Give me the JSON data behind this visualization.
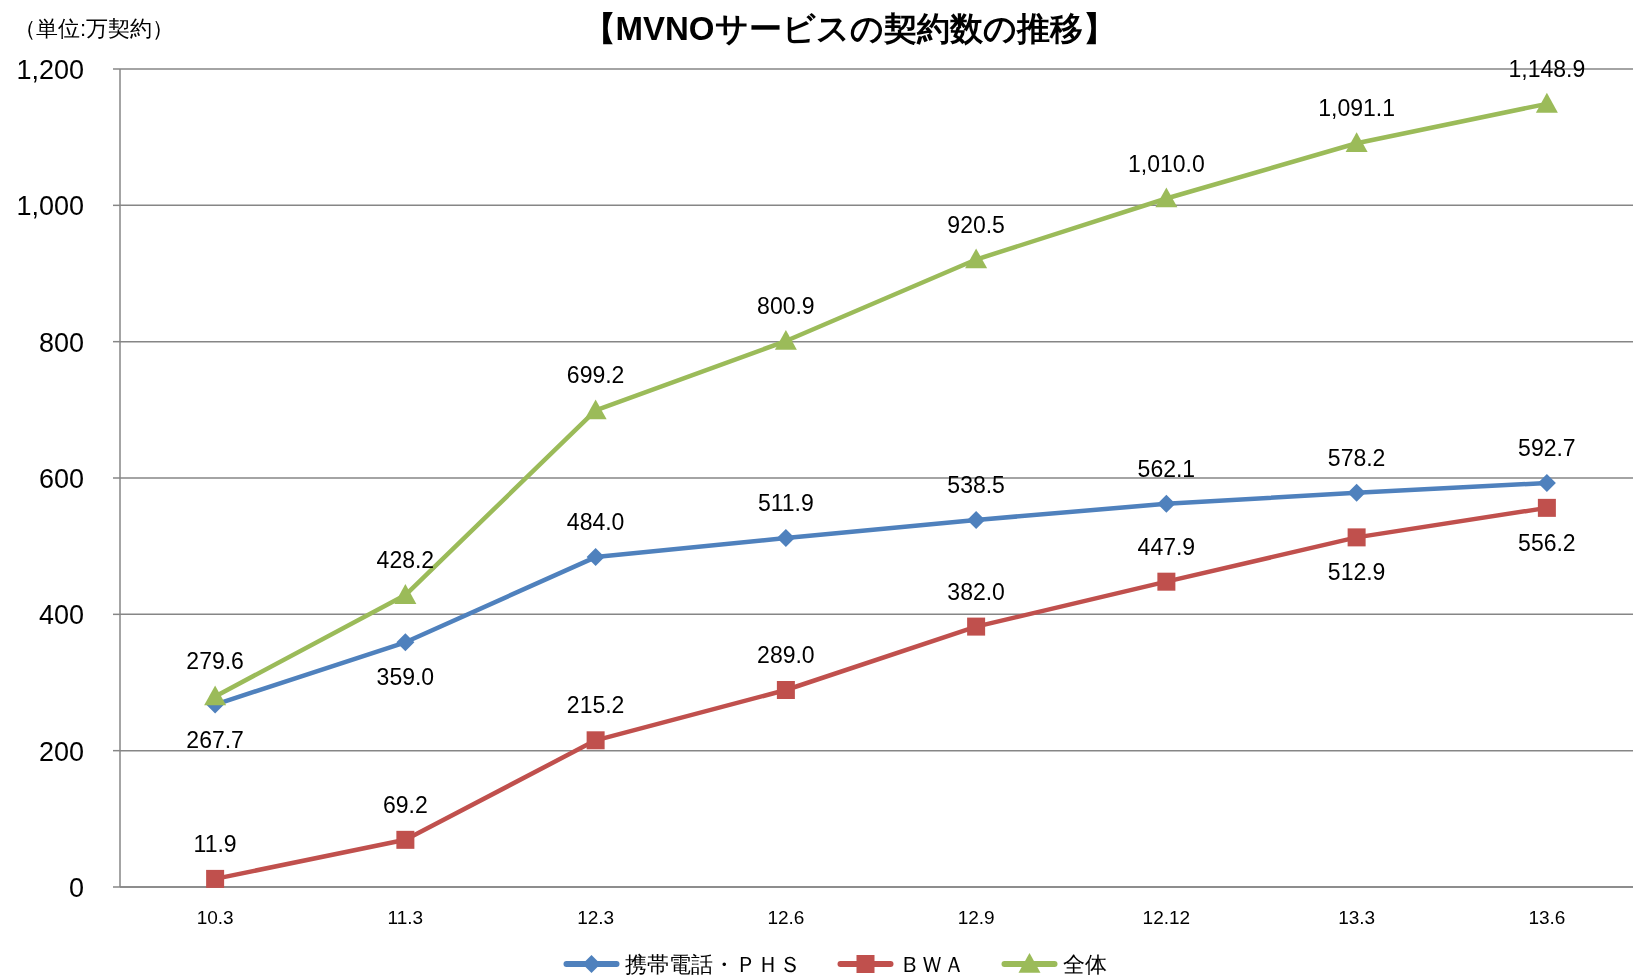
{
  "chart_data": {
    "type": "line",
    "title": "【MVNOサービスの契約数の推移】",
    "ylabel": "（単位:万契約）",
    "categories": [
      "10.3",
      "11.3",
      "12.3",
      "12.6",
      "12.9",
      "12.12",
      "13.3",
      "13.6"
    ],
    "series": [
      {
        "name": "携帯電話・ＰＨＳ",
        "color": "#4f81bd",
        "marker": "diamond",
        "values": [
          267.7,
          359.0,
          484.0,
          511.9,
          538.5,
          562.1,
          578.2,
          592.7
        ],
        "value_labels": [
          "267.7",
          "359.0",
          "484.0",
          "511.9",
          "538.5",
          "562.1",
          "578.2",
          "592.7"
        ]
      },
      {
        "name": "ＢＷＡ",
        "color": "#c0504d",
        "marker": "square",
        "values": [
          11.9,
          69.2,
          215.2,
          289.0,
          382.0,
          447.9,
          512.9,
          556.2
        ],
        "value_labels": [
          "11.9",
          "69.2",
          "215.2",
          "289.0",
          "382.0",
          "447.9",
          "512.9",
          "556.2"
        ]
      },
      {
        "name": "全体",
        "color": "#9bbb59",
        "marker": "triangle",
        "values": [
          279.6,
          428.2,
          699.2,
          800.9,
          920.5,
          1010.0,
          1091.1,
          1148.9
        ],
        "value_labels": [
          "279.6",
          "428.2",
          "699.2",
          "800.9",
          "920.5",
          "1,010.0",
          "1,091.1",
          "1,148.9"
        ]
      }
    ],
    "ylim": [
      0,
      1200
    ],
    "yticks": [
      0,
      200,
      400,
      600,
      800,
      {
        "value": 1000,
        "label": "1,000"
      },
      {
        "value": 1200,
        "label": "1,200"
      }
    ],
    "grid": "y",
    "legend": "bottom"
  }
}
